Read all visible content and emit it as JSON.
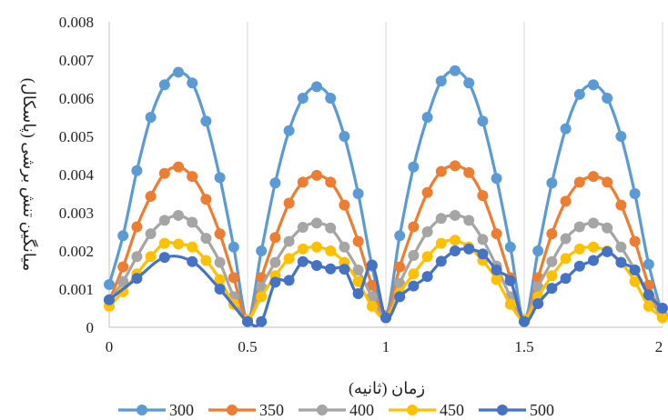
{
  "chart_data": {
    "type": "line",
    "title": "",
    "xlabel": "زمان (ثانیه)",
    "ylabel": "میانگین تنش برشی (پاسکال)",
    "xlim": [
      0,
      2
    ],
    "ylim": [
      0,
      0.008
    ],
    "x_ticks": [
      0,
      0.5,
      1,
      1.5,
      2
    ],
    "x_tick_labels": [
      "0",
      "0.5",
      "1",
      "1.5",
      "2"
    ],
    "y_ticks": [
      0,
      0.001,
      0.002,
      0.003,
      0.004,
      0.005,
      0.006,
      0.007,
      0.008
    ],
    "y_tick_labels": [
      "0",
      "0.001",
      "0.002",
      "0.003",
      "0.004",
      "0.005",
      "0.006",
      "0.007",
      "0.008"
    ],
    "grid": "vertical",
    "legend_position": "bottom",
    "series": [
      {
        "name": "300",
        "color": "#5B9BD5",
        "points": [
          [
            0,
            0.00112
          ],
          [
            0.05,
            0.0024
          ],
          [
            0.1,
            0.0041
          ],
          [
            0.15,
            0.0055
          ],
          [
            0.2,
            0.00635
          ],
          [
            0.25,
            0.00668
          ],
          [
            0.3,
            0.0064
          ],
          [
            0.35,
            0.0054
          ],
          [
            0.4,
            0.00392
          ],
          [
            0.45,
            0.0021
          ],
          [
            0.5,
            0.0002
          ],
          [
            0.55,
            0.002
          ],
          [
            0.6,
            0.00378
          ],
          [
            0.65,
            0.00515
          ],
          [
            0.7,
            0.006
          ],
          [
            0.75,
            0.0063
          ],
          [
            0.8,
            0.006
          ],
          [
            0.85,
            0.005
          ],
          [
            0.9,
            0.0035
          ],
          [
            0.95,
            0.0016
          ],
          [
            1,
            0.0003
          ],
          [
            1.05,
            0.0024
          ],
          [
            1.1,
            0.0042
          ],
          [
            1.15,
            0.0055
          ],
          [
            1.2,
            0.00645
          ],
          [
            1.25,
            0.00672
          ],
          [
            1.3,
            0.0064
          ],
          [
            1.35,
            0.0054
          ],
          [
            1.4,
            0.0039
          ],
          [
            1.45,
            0.0021
          ],
          [
            1.5,
            0.0002
          ],
          [
            1.55,
            0.002
          ],
          [
            1.6,
            0.00378
          ],
          [
            1.65,
            0.0052
          ],
          [
            1.7,
            0.0061
          ],
          [
            1.75,
            0.00635
          ],
          [
            1.8,
            0.006
          ],
          [
            1.85,
            0.005
          ],
          [
            1.9,
            0.0035
          ],
          [
            1.95,
            0.00165
          ],
          [
            2,
            0.0003
          ]
        ]
      },
      {
        "name": "350",
        "color": "#ED7D31",
        "points": [
          [
            0,
            0.0007
          ],
          [
            0.05,
            0.00158
          ],
          [
            0.1,
            0.00263
          ],
          [
            0.15,
            0.00343
          ],
          [
            0.2,
            0.00403
          ],
          [
            0.25,
            0.0042
          ],
          [
            0.3,
            0.00395
          ],
          [
            0.35,
            0.00335
          ],
          [
            0.4,
            0.00245
          ],
          [
            0.45,
            0.0013
          ],
          [
            0.5,
            0.00018
          ],
          [
            0.55,
            0.0013
          ],
          [
            0.6,
            0.00235
          ],
          [
            0.65,
            0.00325
          ],
          [
            0.7,
            0.0038
          ],
          [
            0.75,
            0.00398
          ],
          [
            0.8,
            0.0038
          ],
          [
            0.85,
            0.0032
          ],
          [
            0.9,
            0.00225
          ],
          [
            0.95,
            0.0011
          ],
          [
            1,
            0.00028
          ],
          [
            1.05,
            0.00158
          ],
          [
            1.1,
            0.00263
          ],
          [
            1.15,
            0.00353
          ],
          [
            1.2,
            0.00408
          ],
          [
            1.25,
            0.00423
          ],
          [
            1.3,
            0.00405
          ],
          [
            1.35,
            0.00345
          ],
          [
            1.4,
            0.00245
          ],
          [
            1.45,
            0.0013
          ],
          [
            1.5,
            0.00018
          ],
          [
            1.55,
            0.0013
          ],
          [
            1.6,
            0.00245
          ],
          [
            1.65,
            0.0033
          ],
          [
            1.7,
            0.0038
          ],
          [
            1.75,
            0.00395
          ],
          [
            1.8,
            0.0038
          ],
          [
            1.85,
            0.0032
          ],
          [
            1.9,
            0.00225
          ],
          [
            1.95,
            0.0011
          ],
          [
            2,
            0.00028
          ]
        ]
      },
      {
        "name": "400",
        "color": "#A5A5A5",
        "points": [
          [
            0,
            0.0007
          ],
          [
            0.05,
            0.0012
          ],
          [
            0.1,
            0.00185
          ],
          [
            0.15,
            0.00245
          ],
          [
            0.2,
            0.0028
          ],
          [
            0.25,
            0.00293
          ],
          [
            0.3,
            0.00275
          ],
          [
            0.35,
            0.00233
          ],
          [
            0.4,
            0.0017
          ],
          [
            0.45,
            0.0008
          ],
          [
            0.5,
            0.00015
          ],
          [
            0.55,
            0.00105
          ],
          [
            0.6,
            0.0017
          ],
          [
            0.65,
            0.00225
          ],
          [
            0.7,
            0.00262
          ],
          [
            0.75,
            0.00273
          ],
          [
            0.8,
            0.0026
          ],
          [
            0.85,
            0.0021
          ],
          [
            0.9,
            0.0015
          ],
          [
            0.95,
            0.0008
          ],
          [
            1,
            0.00025
          ],
          [
            1.05,
            0.00115
          ],
          [
            1.1,
            0.00188
          ],
          [
            1.15,
            0.0025
          ],
          [
            1.2,
            0.00285
          ],
          [
            1.25,
            0.00293
          ],
          [
            1.3,
            0.0028
          ],
          [
            1.35,
            0.0023
          ],
          [
            1.4,
            0.0016
          ],
          [
            1.45,
            0.0008
          ],
          [
            1.5,
            0.00015
          ],
          [
            1.55,
            0.00105
          ],
          [
            1.6,
            0.00172
          ],
          [
            1.65,
            0.00232
          ],
          [
            1.7,
            0.00263
          ],
          [
            1.75,
            0.00273
          ],
          [
            1.8,
            0.0026
          ],
          [
            1.85,
            0.0021
          ],
          [
            1.9,
            0.0015
          ],
          [
            1.95,
            0.0008
          ],
          [
            2,
            0.00025
          ]
        ]
      },
      {
        "name": "450",
        "color": "#FFC000",
        "points": [
          [
            0,
            0.00055
          ],
          [
            0.05,
            0.00093
          ],
          [
            0.1,
            0.0014
          ],
          [
            0.15,
            0.00185
          ],
          [
            0.2,
            0.0022
          ],
          [
            0.25,
            0.00218
          ],
          [
            0.3,
            0.0021
          ],
          [
            0.35,
            0.00175
          ],
          [
            0.4,
            0.00125
          ],
          [
            0.45,
            0.0006
          ],
          [
            0.5,
            0.0002
          ],
          [
            0.55,
            0.0008
          ],
          [
            0.6,
            0.00135
          ],
          [
            0.65,
            0.0018
          ],
          [
            0.7,
            0.00205
          ],
          [
            0.75,
            0.0021
          ],
          [
            0.8,
            0.002
          ],
          [
            0.85,
            0.0017
          ],
          [
            0.9,
            0.0012
          ],
          [
            0.95,
            0.00055
          ],
          [
            1,
            0.00025
          ],
          [
            1.05,
            0.0009
          ],
          [
            1.1,
            0.0014
          ],
          [
            1.15,
            0.00185
          ],
          [
            1.2,
            0.0022
          ],
          [
            1.25,
            0.00228
          ],
          [
            1.3,
            0.0021
          ],
          [
            1.35,
            0.00175
          ],
          [
            1.4,
            0.00125
          ],
          [
            1.45,
            0.0006
          ],
          [
            1.5,
            0.0002
          ],
          [
            1.55,
            0.0008
          ],
          [
            1.6,
            0.00135
          ],
          [
            1.65,
            0.0018
          ],
          [
            1.7,
            0.00205
          ],
          [
            1.75,
            0.0021
          ],
          [
            1.8,
            0.002
          ],
          [
            1.85,
            0.0017
          ],
          [
            1.9,
            0.0012
          ],
          [
            1.95,
            0.00055
          ],
          [
            2,
            0.00025
          ]
        ]
      },
      {
        "name": "500",
        "color": "#4472C4",
        "points": [
          [
            0,
            0.00072
          ],
          [
            0.1,
            0.00128
          ],
          [
            0.2,
            0.00183
          ],
          [
            0.3,
            0.00172
          ],
          [
            0.4,
            0.001
          ],
          [
            0.5,
            0.00015
          ],
          [
            0.55,
            0.00015
          ],
          [
            0.6,
            0.00118
          ],
          [
            0.65,
            0.00123
          ],
          [
            0.7,
            0.00172
          ],
          [
            0.75,
            0.00162
          ],
          [
            0.8,
            0.00153
          ],
          [
            0.85,
            0.00152
          ],
          [
            0.9,
            0.00088
          ],
          [
            0.95,
            0.00163
          ],
          [
            1,
            0.00025
          ],
          [
            1.05,
            0.0008
          ],
          [
            1.1,
            0.00108
          ],
          [
            1.15,
            0.00133
          ],
          [
            1.2,
            0.00173
          ],
          [
            1.25,
            0.002
          ],
          [
            1.3,
            0.00205
          ],
          [
            1.35,
            0.00192
          ],
          [
            1.4,
            0.0015
          ],
          [
            1.45,
            0.00122
          ],
          [
            1.5,
            0.00015
          ],
          [
            1.55,
            0.00062
          ],
          [
            1.6,
            0.00102
          ],
          [
            1.65,
            0.00128
          ],
          [
            1.7,
            0.0016
          ],
          [
            1.75,
            0.00175
          ],
          [
            1.8,
            0.00198
          ],
          [
            1.85,
            0.0017
          ],
          [
            1.9,
            0.0015
          ],
          [
            1.95,
            0.00085
          ],
          [
            2,
            0.0005
          ]
        ]
      }
    ]
  }
}
